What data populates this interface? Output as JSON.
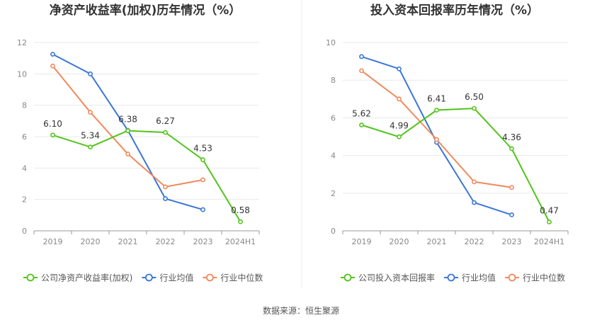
{
  "source_note": "数据来源：恒生聚源",
  "colors": {
    "company": "#52c41a",
    "average": "#3a76d8",
    "median": "#f08a5d",
    "grid": "#e8e8e8",
    "axis": "#999999"
  },
  "chart_data": [
    {
      "type": "line",
      "title": "净资产收益率(加权)历年情况（%）",
      "categories": [
        "2019",
        "2020",
        "2021",
        "2022",
        "2023",
        "2024H1"
      ],
      "ylim": [
        0,
        12
      ],
      "yticks": [
        0,
        2,
        4,
        6,
        8,
        10,
        12
      ],
      "grid": true,
      "legend_position": "bottom-left",
      "series": [
        {
          "name": "公司净资产收益率(加权)",
          "role": "company",
          "values": [
            6.1,
            5.34,
            6.38,
            6.27,
            4.53,
            0.58
          ],
          "labels": [
            "6.10",
            "5.34",
            "6.38",
            "6.27",
            "4.53",
            "0.58"
          ]
        },
        {
          "name": "行业均值",
          "role": "average",
          "values": [
            11.25,
            10.0,
            6.4,
            2.05,
            1.35,
            null
          ]
        },
        {
          "name": "行业中位数",
          "role": "median",
          "values": [
            10.5,
            7.55,
            4.9,
            2.8,
            3.25,
            null
          ]
        }
      ]
    },
    {
      "type": "line",
      "title": "投入资本回报率历年情况（%）",
      "categories": [
        "2019",
        "2020",
        "2021",
        "2022",
        "2023",
        "2024H1"
      ],
      "ylim": [
        0,
        10
      ],
      "yticks": [
        0,
        2,
        4,
        6,
        8,
        10
      ],
      "grid": true,
      "legend_position": "bottom-left",
      "series": [
        {
          "name": "公司投入资本回报率",
          "role": "company",
          "values": [
            5.62,
            4.99,
            6.41,
            6.5,
            4.36,
            0.47
          ],
          "labels": [
            "5.62",
            "4.99",
            "6.41",
            "6.50",
            "4.36",
            "0.47"
          ]
        },
        {
          "name": "行业均值",
          "role": "average",
          "values": [
            9.25,
            8.6,
            4.7,
            1.5,
            0.85,
            null
          ]
        },
        {
          "name": "行业中位数",
          "role": "median",
          "values": [
            8.5,
            7.0,
            4.85,
            2.6,
            2.3,
            null
          ]
        }
      ]
    }
  ]
}
